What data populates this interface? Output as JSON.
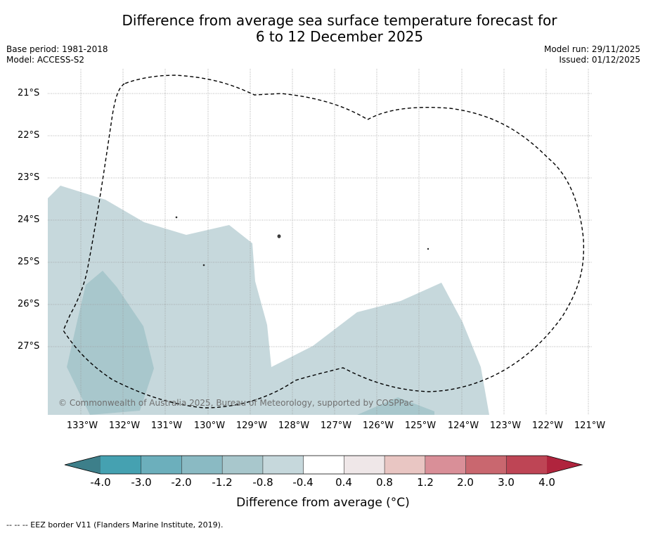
{
  "title_line1": "Difference from average sea surface temperature forecast for",
  "title_line2": "6 to 12 December 2025",
  "base_period": "Base period: 1981-2018",
  "model": "Model: ACCESS-S2",
  "model_run": "Model run: 29/11/2025",
  "issued": "Issued: 01/12/2025",
  "copyright": "© Commonwealth of Australia 2025, Bureau of Meteorology, supported by COSPPac",
  "footnote": "-- -- -- EEZ border V11 (Flanders Marine Institute, 2019).",
  "lat_labels": [
    "21°S",
    "22°S",
    "23°S",
    "24°S",
    "25°S",
    "26°S",
    "27°S"
  ],
  "lon_labels": [
    "133°W",
    "132°W",
    "131°W",
    "130°W",
    "129°W",
    "128°W",
    "127°W",
    "126°W",
    "125°W",
    "124°W",
    "123°W",
    "122°W",
    "121°W"
  ],
  "colorbar": {
    "label": "Difference from average (°C)",
    "ticks": [
      "-4.0",
      "-3.0",
      "-2.0",
      "-1.2",
      "-0.8",
      "-0.4",
      "0.4",
      "0.8",
      "1.2",
      "2.0",
      "3.0",
      "4.0"
    ],
    "colors": {
      "under": "#3d7f8a",
      "bins": [
        "#45a1b1",
        "#6cafbc",
        "#8abac3",
        "#a8c7cc",
        "#c6d8dc",
        "#ffffff",
        "#efe7e8",
        "#e9c6c3",
        "#d98f98",
        "#c9676f",
        "#be4555"
      ],
      "over": "#b0243d"
    }
  },
  "map_colors": {
    "light_cool": "#c6d8dc",
    "medium_cool": "#a8c7cc",
    "eez_border": "#000000"
  }
}
